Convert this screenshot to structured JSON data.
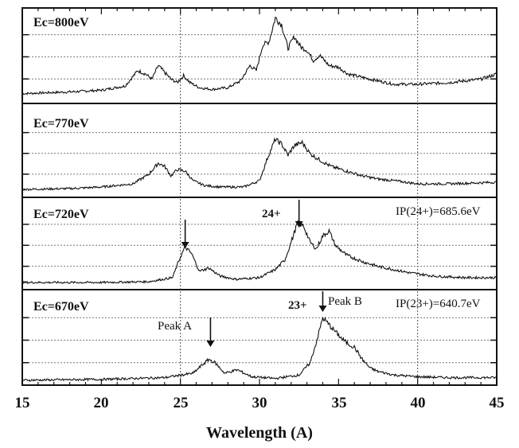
{
  "chart_data": {
    "type": "line",
    "xlabel": "Wavelength (A)",
    "xlim": [
      15,
      45
    ],
    "x_ticks": [
      "15",
      "20",
      "25",
      "30",
      "35",
      "40",
      "45"
    ],
    "ylabel": "",
    "grid": true,
    "panels": [
      {
        "label": "Ec=800eV",
        "ylim": [
          0,
          1
        ],
        "x": [
          15,
          18,
          20,
          21.5,
          22.3,
          22.8,
          23.2,
          23.6,
          24.0,
          24.4,
          24.8,
          25.2,
          25.6,
          26.2,
          27.0,
          28.0,
          28.8,
          29.4,
          29.8,
          30.2,
          30.6,
          31.0,
          31.4,
          31.8,
          32.2,
          32.6,
          33.0,
          33.4,
          33.8,
          34.4,
          35.0,
          35.6,
          36.5,
          37.5,
          38.5,
          40.0,
          42.0,
          44.0,
          45
        ],
        "y": [
          0.05,
          0.07,
          0.09,
          0.14,
          0.32,
          0.28,
          0.22,
          0.38,
          0.3,
          0.22,
          0.18,
          0.26,
          0.18,
          0.12,
          0.1,
          0.12,
          0.2,
          0.38,
          0.32,
          0.62,
          0.66,
          0.94,
          0.86,
          0.58,
          0.72,
          0.6,
          0.56,
          0.44,
          0.5,
          0.38,
          0.36,
          0.28,
          0.24,
          0.2,
          0.16,
          0.16,
          0.18,
          0.22,
          0.28
        ]
      },
      {
        "label": "Ec=770eV",
        "ylim": [
          0,
          1
        ],
        "x": [
          15,
          18,
          20,
          22.0,
          23.0,
          23.6,
          24.0,
          24.4,
          24.8,
          25.3,
          25.8,
          26.5,
          27.5,
          29.0,
          30.0,
          30.5,
          31.0,
          31.4,
          31.8,
          32.2,
          32.7,
          33.2,
          33.8,
          34.5,
          35.5,
          36.5,
          37.5,
          38.5,
          40.0,
          42.0,
          45
        ],
        "y": [
          0.03,
          0.04,
          0.06,
          0.1,
          0.22,
          0.36,
          0.32,
          0.2,
          0.28,
          0.26,
          0.14,
          0.08,
          0.06,
          0.06,
          0.14,
          0.42,
          0.66,
          0.6,
          0.46,
          0.58,
          0.62,
          0.48,
          0.4,
          0.32,
          0.26,
          0.2,
          0.16,
          0.14,
          0.1,
          0.1,
          0.12
        ]
      },
      {
        "label": "Ec=720eV",
        "ylim": [
          0,
          1
        ],
        "x": [
          15,
          20,
          23,
          24.5,
          25.0,
          25.3,
          25.7,
          26.2,
          26.8,
          27.5,
          28.5,
          30.0,
          31.0,
          31.6,
          32.0,
          32.4,
          32.8,
          33.2,
          33.6,
          34.0,
          34.4,
          34.8,
          35.5,
          36.5,
          37.5,
          38.5,
          39.5,
          41.0,
          43.0,
          45
        ],
        "y": [
          0.02,
          0.02,
          0.03,
          0.08,
          0.34,
          0.46,
          0.38,
          0.16,
          0.2,
          0.1,
          0.06,
          0.08,
          0.18,
          0.3,
          0.52,
          0.76,
          0.72,
          0.52,
          0.44,
          0.6,
          0.66,
          0.48,
          0.36,
          0.28,
          0.22,
          0.18,
          0.14,
          0.1,
          0.08,
          0.08
        ]
      },
      {
        "label": "Ec=670eV",
        "ylim": [
          0,
          1
        ],
        "x": [
          15,
          20,
          24,
          25.8,
          26.4,
          26.8,
          27.2,
          27.8,
          28.6,
          29.5,
          31.0,
          32.5,
          33.2,
          33.6,
          34.0,
          34.4,
          34.8,
          35.2,
          35.6,
          36.0,
          36.5,
          37.0,
          37.5,
          38.5,
          40.0,
          42.0,
          45
        ],
        "y": [
          0.02,
          0.03,
          0.05,
          0.1,
          0.2,
          0.26,
          0.22,
          0.1,
          0.14,
          0.06,
          0.04,
          0.08,
          0.22,
          0.46,
          0.74,
          0.66,
          0.58,
          0.5,
          0.44,
          0.4,
          0.26,
          0.16,
          0.12,
          0.08,
          0.06,
          0.05,
          0.05
        ]
      }
    ],
    "annotations": [
      {
        "text": "24+",
        "panel": 2,
        "x": 32.5
      },
      {
        "text": "IP(24+)=685.6eV",
        "panel": 2
      },
      {
        "text": "23+",
        "panel": 3,
        "x": 34
      },
      {
        "text": "Peak B",
        "panel": 3,
        "x": 34
      },
      {
        "text": "IP(23+)=640.7eV",
        "panel": 3
      },
      {
        "text": "Peak A",
        "panel": 3,
        "x": 26.9
      }
    ],
    "arrows": [
      {
        "panel": 2,
        "x": 25.3
      },
      {
        "panel": 2,
        "x": 32.5
      },
      {
        "panel": 3,
        "x": 26.9
      },
      {
        "panel": 3,
        "x": 34.0
      }
    ]
  }
}
